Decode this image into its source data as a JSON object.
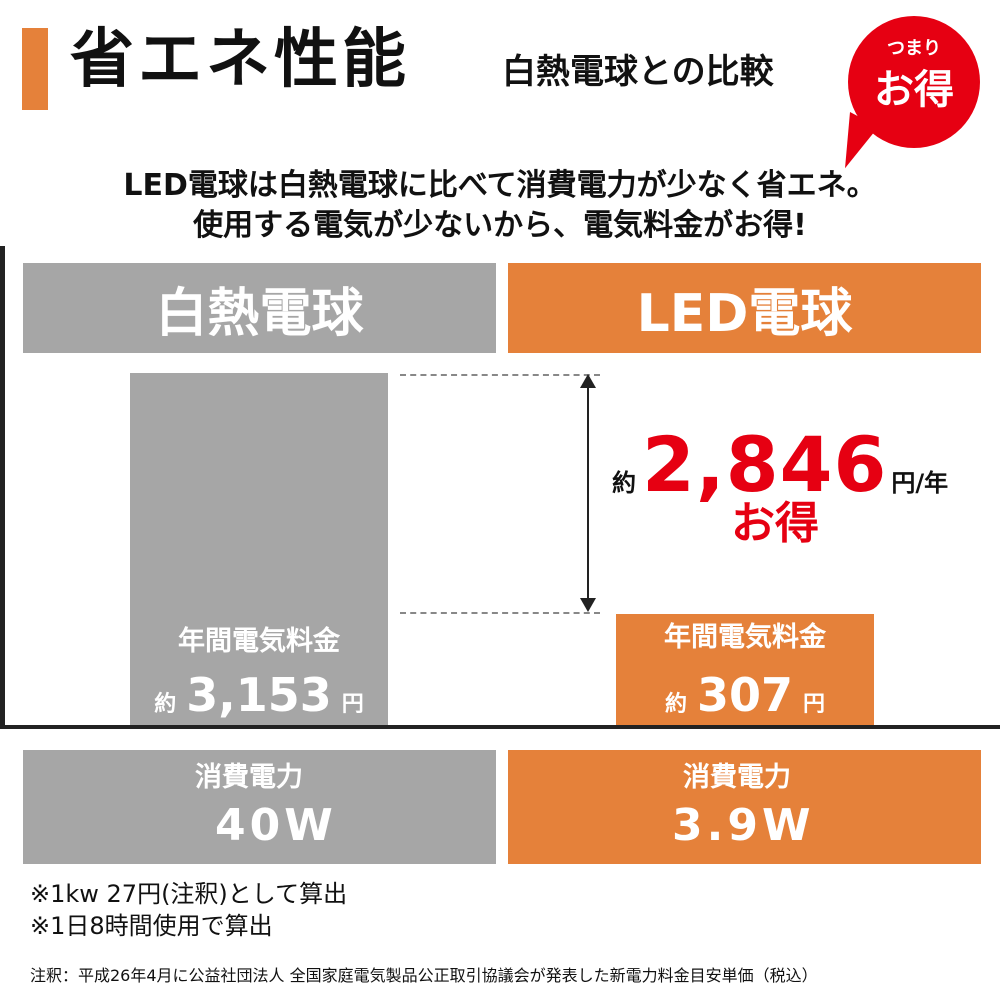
{
  "header": {
    "title": "省エネ性能",
    "subtitle": "白熱電球との比較",
    "bubble_small": "つまり",
    "bubble_big": "お得"
  },
  "intro": {
    "line1": "LED電球は白熱電球に比べて消費電力が少なく省エネ。",
    "line2": "使用する電気が少ないから、電気料金がお得!"
  },
  "columns": {
    "incandescent": {
      "name": "白熱電球",
      "bar_label": "年間電気料金",
      "prefix": "約",
      "amount": "3,153",
      "unit": "円",
      "power_label": "消費電力",
      "power_value": "40W"
    },
    "led": {
      "name": "LED電球",
      "bar_label": "年間電気料金",
      "prefix": "約",
      "amount": "307",
      "unit": "円",
      "power_label": "消費電力",
      "power_value": "3.9W"
    }
  },
  "saving": {
    "prefix": "約",
    "amount": "2,846",
    "unit": "円/年",
    "label": "お得"
  },
  "notes": {
    "note1": "※1kw 27円(注釈)として算出",
    "note2": "※1日8時間使用で算出",
    "footnote": "注釈：平成26年4月に公益社団法人 全国家庭電気製品公正取引協議会が発表した新電力料金目安単価（税込）"
  },
  "chart_data": {
    "type": "bar",
    "categories": [
      "白熱電球",
      "LED電球"
    ],
    "values": [
      3153,
      307
    ]
  },
  "colors": {
    "accent_orange": "#e5813a",
    "gray": "#a6a6a6",
    "red": "#e60012"
  }
}
